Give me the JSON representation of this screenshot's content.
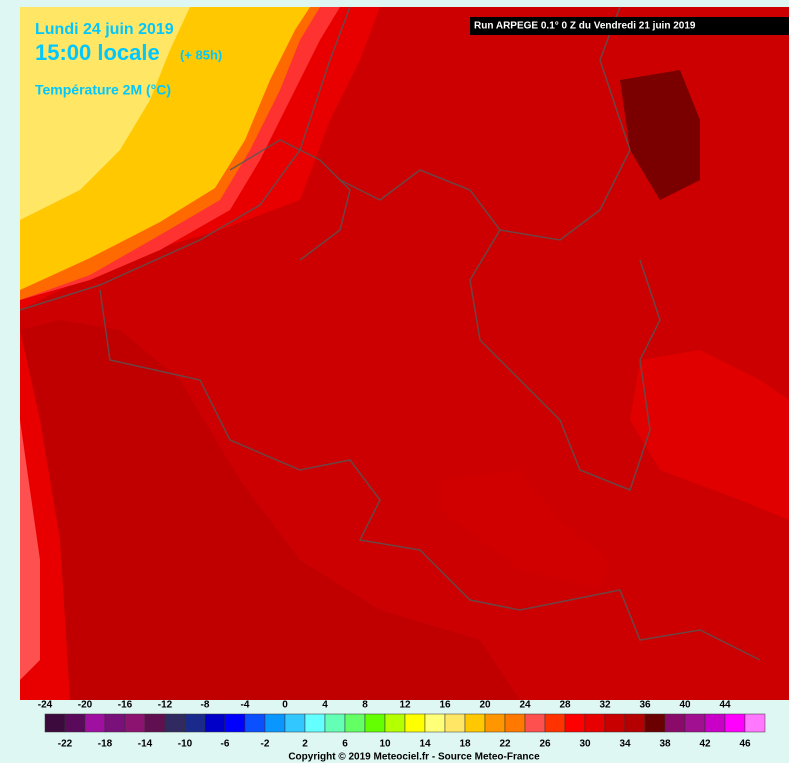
{
  "header": {
    "date": "Lundi 24 juin 2019",
    "time": "15:00 locale",
    "lead": "(+ 85h)",
    "variable": "Température 2M (°C)"
  },
  "run": "Run ARPEGE 0.1° 0 Z du Vendredi 21 juin 2019",
  "legend": {
    "values": [
      -24,
      -22,
      -20,
      -18,
      -16,
      -14,
      -12,
      -10,
      -8,
      -6,
      -4,
      -2,
      0,
      2,
      4,
      6,
      8,
      10,
      12,
      14,
      16,
      18,
      20,
      22,
      24,
      26,
      28,
      30,
      32,
      34,
      36,
      38,
      40,
      42,
      44,
      46
    ],
    "colors": [
      "#3c0a3c",
      "#5a0a5a",
      "#a010a0",
      "#7a107a",
      "#8c1470",
      "#601050",
      "#302a60",
      "#1a2a8c",
      "#0000c8",
      "#0000ff",
      "#0a50ff",
      "#0a96ff",
      "#32c8ff",
      "#64ffff",
      "#64ffb4",
      "#64ff64",
      "#64ff00",
      "#b4ff00",
      "#ffff00",
      "#ffff78",
      "#ffe664",
      "#ffc800",
      "#ff9600",
      "#ff7800",
      "#ff5050",
      "#ff3200",
      "#ff0000",
      "#e60000",
      "#c80000",
      "#b40000",
      "#6a0000",
      "#8a0a6a",
      "#a01090",
      "#c800c8",
      "#ff00ff",
      "#ff78ff"
    ]
  },
  "copyright": "Copyright © 2019 Meteociel.fr - Source Meteo-France"
}
